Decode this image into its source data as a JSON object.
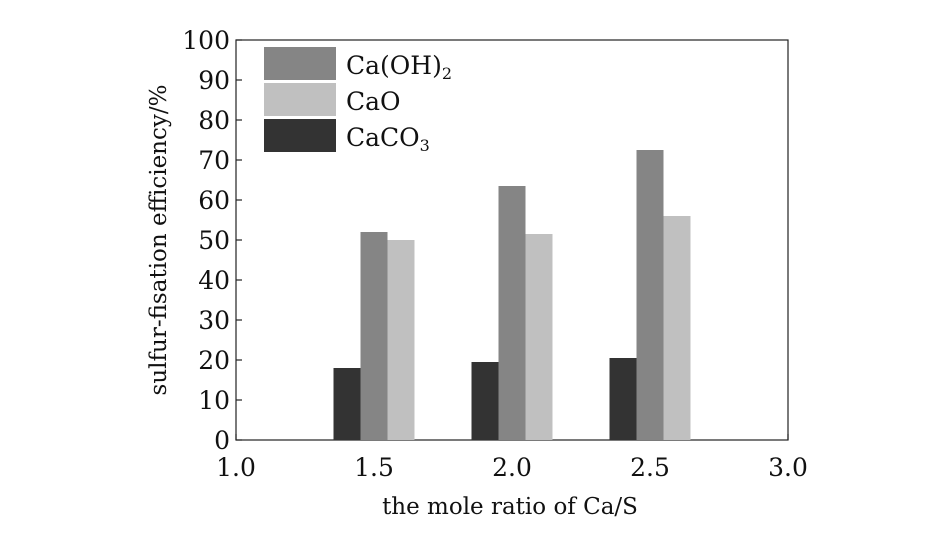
{
  "chart_data": {
    "type": "bar",
    "xlabel": "the mole ratio of Ca/S",
    "ylabel": "sulfur-fisation efficiency/%",
    "xlim": [
      1.0,
      3.0
    ],
    "ylim": [
      0,
      100
    ],
    "x_ticks": [
      "1.0",
      "1.5",
      "2.0",
      "2.5",
      "3.0"
    ],
    "y_ticks": [
      "0",
      "10",
      "20",
      "30",
      "40",
      "50",
      "60",
      "70",
      "80",
      "90",
      "100"
    ],
    "categories": [
      1.5,
      2.0,
      2.5
    ],
    "series": [
      {
        "name": "Ca(OH)2",
        "display": [
          "Ca(OH)",
          "2"
        ],
        "values": [
          52,
          63.5,
          72.5
        ],
        "color": "#858585"
      },
      {
        "name": "CaO",
        "display": [
          "CaO",
          ""
        ],
        "values": [
          50,
          51.5,
          56
        ],
        "color": "#c0c0c0"
      },
      {
        "name": "CaCO3",
        "display": [
          "CaCO",
          "3"
        ],
        "values": [
          18,
          19.5,
          20.5
        ],
        "color": "#333333"
      }
    ],
    "legend": "top-left",
    "grid": false
  }
}
